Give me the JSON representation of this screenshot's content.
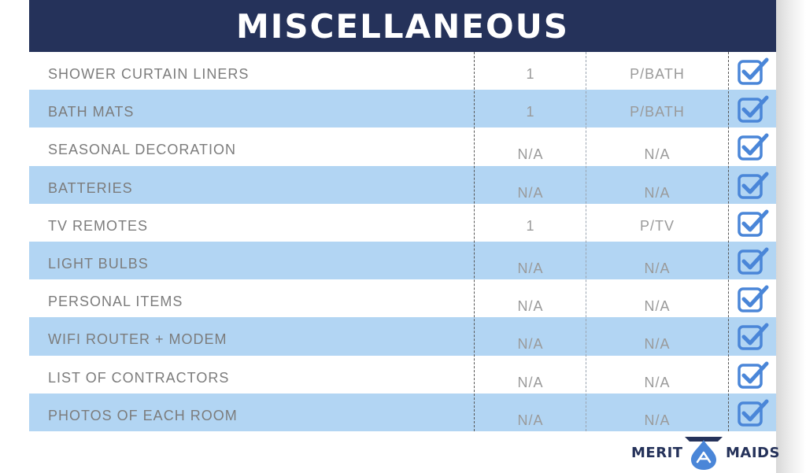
{
  "header": {
    "title": "MISCELLANEOUS"
  },
  "rows": [
    {
      "item": "SHOWER CURTAIN LINERS",
      "qty": "1",
      "unit": "P/BATH"
    },
    {
      "item": "BATH MATS",
      "qty": "1",
      "unit": "P/BATH"
    },
    {
      "item": "SEASONAL DECORATION",
      "qty": "N/A",
      "unit": "N/A"
    },
    {
      "item": "BATTERIES",
      "qty": "N/A",
      "unit": "N/A"
    },
    {
      "item": "TV REMOTES",
      "qty": "1",
      "unit": "P/TV"
    },
    {
      "item": "LIGHT BULBS",
      "qty": "N/A",
      "unit": "N/A"
    },
    {
      "item": "PERSONAL ITEMS",
      "qty": "N/A",
      "unit": "N/A"
    },
    {
      "item": "WIFI ROUTER + MODEM",
      "qty": "N/A",
      "unit": "N/A"
    },
    {
      "item": "LIST OF CONTRACTORS",
      "qty": "N/A",
      "unit": "N/A"
    },
    {
      "item": "PHOTOS OF EACH ROOM",
      "qty": "N/A",
      "unit": "N/A"
    }
  ],
  "logo": {
    "left": "MERIT",
    "right": "MAIDS"
  },
  "colors": {
    "header_bg": "#25325a",
    "shaded_row": "#b2d5f3",
    "check_blue": "#4a86d8",
    "text_gray": "#7c7c7c"
  },
  "icons": {
    "row_check": "checkbox-checked-icon",
    "logo_mark": "water-drop-logo-icon"
  }
}
